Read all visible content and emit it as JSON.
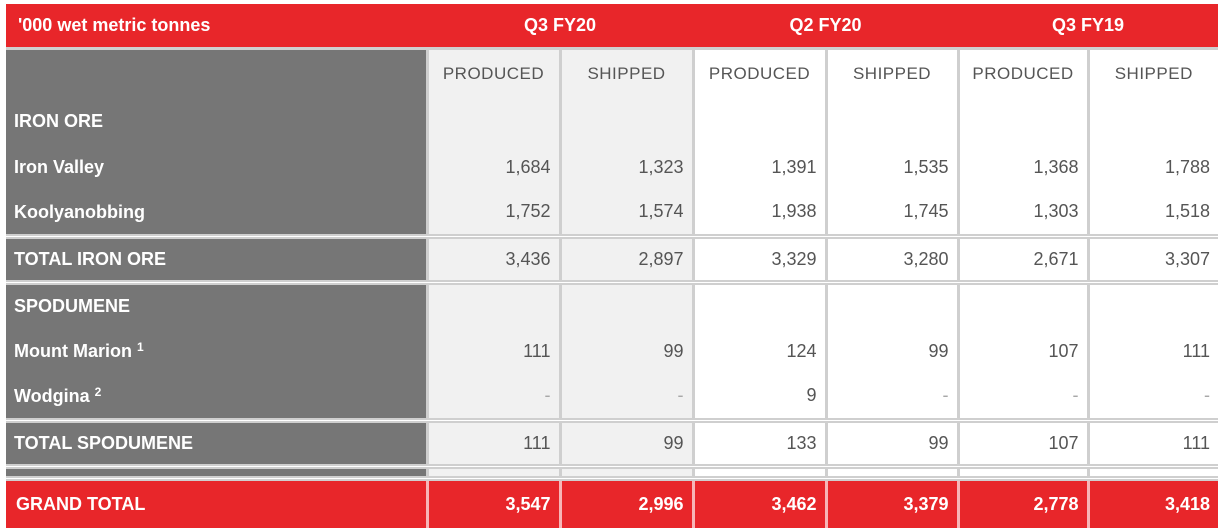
{
  "table": {
    "unit_label": "'000 wet metric tonnes",
    "periods": [
      "Q3 FY20",
      "Q2 FY20",
      "Q3 FY19"
    ],
    "subheaders": [
      "PRODUCED",
      "SHIPPED",
      "PRODUCED",
      "SHIPPED",
      "PRODUCED",
      "SHIPPED"
    ],
    "iron_ore": {
      "section_label": "IRON ORE",
      "rows": [
        {
          "label": "Iron Valley",
          "footnote": "",
          "values": [
            "1,684",
            "1,323",
            "1,391",
            "1,535",
            "1,368",
            "1,788"
          ]
        },
        {
          "label": "Koolyanobbing",
          "footnote": "",
          "values": [
            "1,752",
            "1,574",
            "1,938",
            "1,745",
            "1,303",
            "1,518"
          ]
        }
      ],
      "total": {
        "label": "TOTAL IRON ORE",
        "values": [
          "3,436",
          "2,897",
          "3,329",
          "3,280",
          "2,671",
          "3,307"
        ]
      }
    },
    "spodumene": {
      "section_label": "SPODUMENE",
      "rows": [
        {
          "label": "Mount Marion",
          "footnote": "1",
          "values": [
            "111",
            "99",
            "124",
            "99",
            "107",
            "111"
          ]
        },
        {
          "label": "Wodgina",
          "footnote": "2",
          "values": [
            "-",
            "-",
            "9",
            "-",
            "-",
            "-"
          ]
        }
      ],
      "total": {
        "label": "TOTAL SPODUMENE",
        "values": [
          "111",
          "99",
          "133",
          "99",
          "107",
          "111"
        ]
      }
    },
    "grand_total": {
      "label": "GRAND TOTAL",
      "values": [
        "3,547",
        "2,996",
        "3,462",
        "3,379",
        "2,778",
        "3,418"
      ]
    },
    "colors": {
      "header_red": "#e8262a",
      "label_grey": "#767676",
      "q3_fy20_shade": "#f1f1f1",
      "grid_line": "#cfcfcf"
    }
  }
}
